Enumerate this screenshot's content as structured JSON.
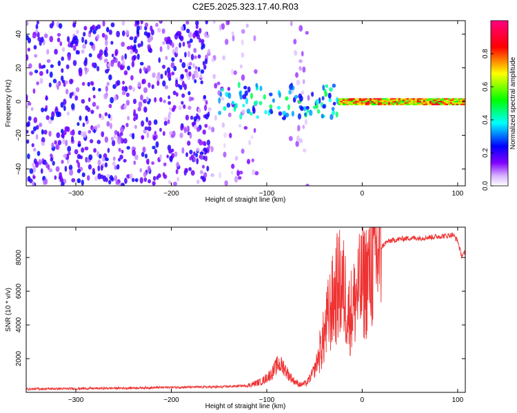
{
  "figure_title": "C2E5.2025.323.17.40.R03",
  "chart_data": [
    {
      "type": "heatmap",
      "title": "C2E5.2025.323.17.40.R03",
      "xlabel": "Height of straight line (km)",
      "ylabel": "Frequency (Hz)",
      "xlim": [
        -352,
        108
      ],
      "ylim": [
        -50,
        48
      ],
      "xticks": [
        -300,
        -200,
        -100,
        0,
        100
      ],
      "yticks": [
        -40,
        -20,
        0,
        20,
        40
      ],
      "colorbar": {
        "label": "Normalized spectral amplitude",
        "range": [
          0.0,
          1.0
        ],
        "ticks": [
          0.0,
          0.2,
          0.4,
          0.6,
          0.8
        ],
        "colors": [
          "#ffffff",
          "#8000ff",
          "#0000ff",
          "#00ffff",
          "#00ff00",
          "#ffff00",
          "#ff0000",
          "#ff0080"
        ]
      },
      "regions": [
        {
          "x_range": [
            -352,
            -160
          ],
          "freq_range": [
            -50,
            48
          ],
          "density": "high",
          "amplitude": [
            0.05,
            0.25
          ]
        },
        {
          "x_range": [
            -160,
            -110
          ],
          "freq_range": [
            -50,
            48
          ],
          "density": "low",
          "amplitude": [
            0.03,
            0.15
          ]
        },
        {
          "x_range": [
            -75,
            -55
          ],
          "freq_range": [
            -50,
            48
          ],
          "density": "low",
          "amplitude": [
            0.03,
            0.12
          ]
        },
        {
          "x_range": [
            -150,
            -25
          ],
          "freq_range": [
            -10,
            10
          ],
          "density": "high",
          "amplitude": [
            0.2,
            0.5
          ]
        },
        {
          "x_range": [
            -25,
            108
          ],
          "freq_range": [
            -2,
            2
          ],
          "density": "continuous",
          "amplitude": [
            0.5,
            0.9
          ]
        }
      ]
    },
    {
      "type": "line",
      "xlabel": "Height of straight line (km)",
      "ylabel": "SNR (10 * v/v)",
      "xlim": [
        -352,
        108
      ],
      "ylim": [
        0,
        9800
      ],
      "xticks": [
        -300,
        -200,
        -100,
        0,
        100
      ],
      "yticks": [
        2000,
        4000,
        6000,
        8000
      ],
      "color": "#ee3333",
      "series": [
        {
          "name": "SNR",
          "x": [
            -352,
            -300,
            -250,
            -200,
            -150,
            -120,
            -105,
            -95,
            -88,
            -82,
            -78,
            -72,
            -65,
            -58,
            -50,
            -45,
            -40,
            -35,
            -30,
            -26,
            -22,
            -18,
            -14,
            -10,
            -6,
            -3,
            0,
            4,
            8,
            12,
            16,
            20,
            25,
            30,
            40,
            50,
            60,
            70,
            80,
            90,
            95,
            100,
            104,
            108
          ],
          "values": [
            200,
            220,
            250,
            300,
            320,
            400,
            650,
            1100,
            1700,
            1500,
            1100,
            700,
            450,
            550,
            1300,
            2300,
            3300,
            4600,
            5500,
            6200,
            6400,
            5800,
            4600,
            5000,
            5800,
            6100,
            6400,
            6700,
            7300,
            7900,
            8200,
            8600,
            8900,
            9000,
            9100,
            9150,
            9150,
            9200,
            9250,
            9300,
            9350,
            9000,
            8100,
            8300
          ]
        }
      ]
    }
  ]
}
